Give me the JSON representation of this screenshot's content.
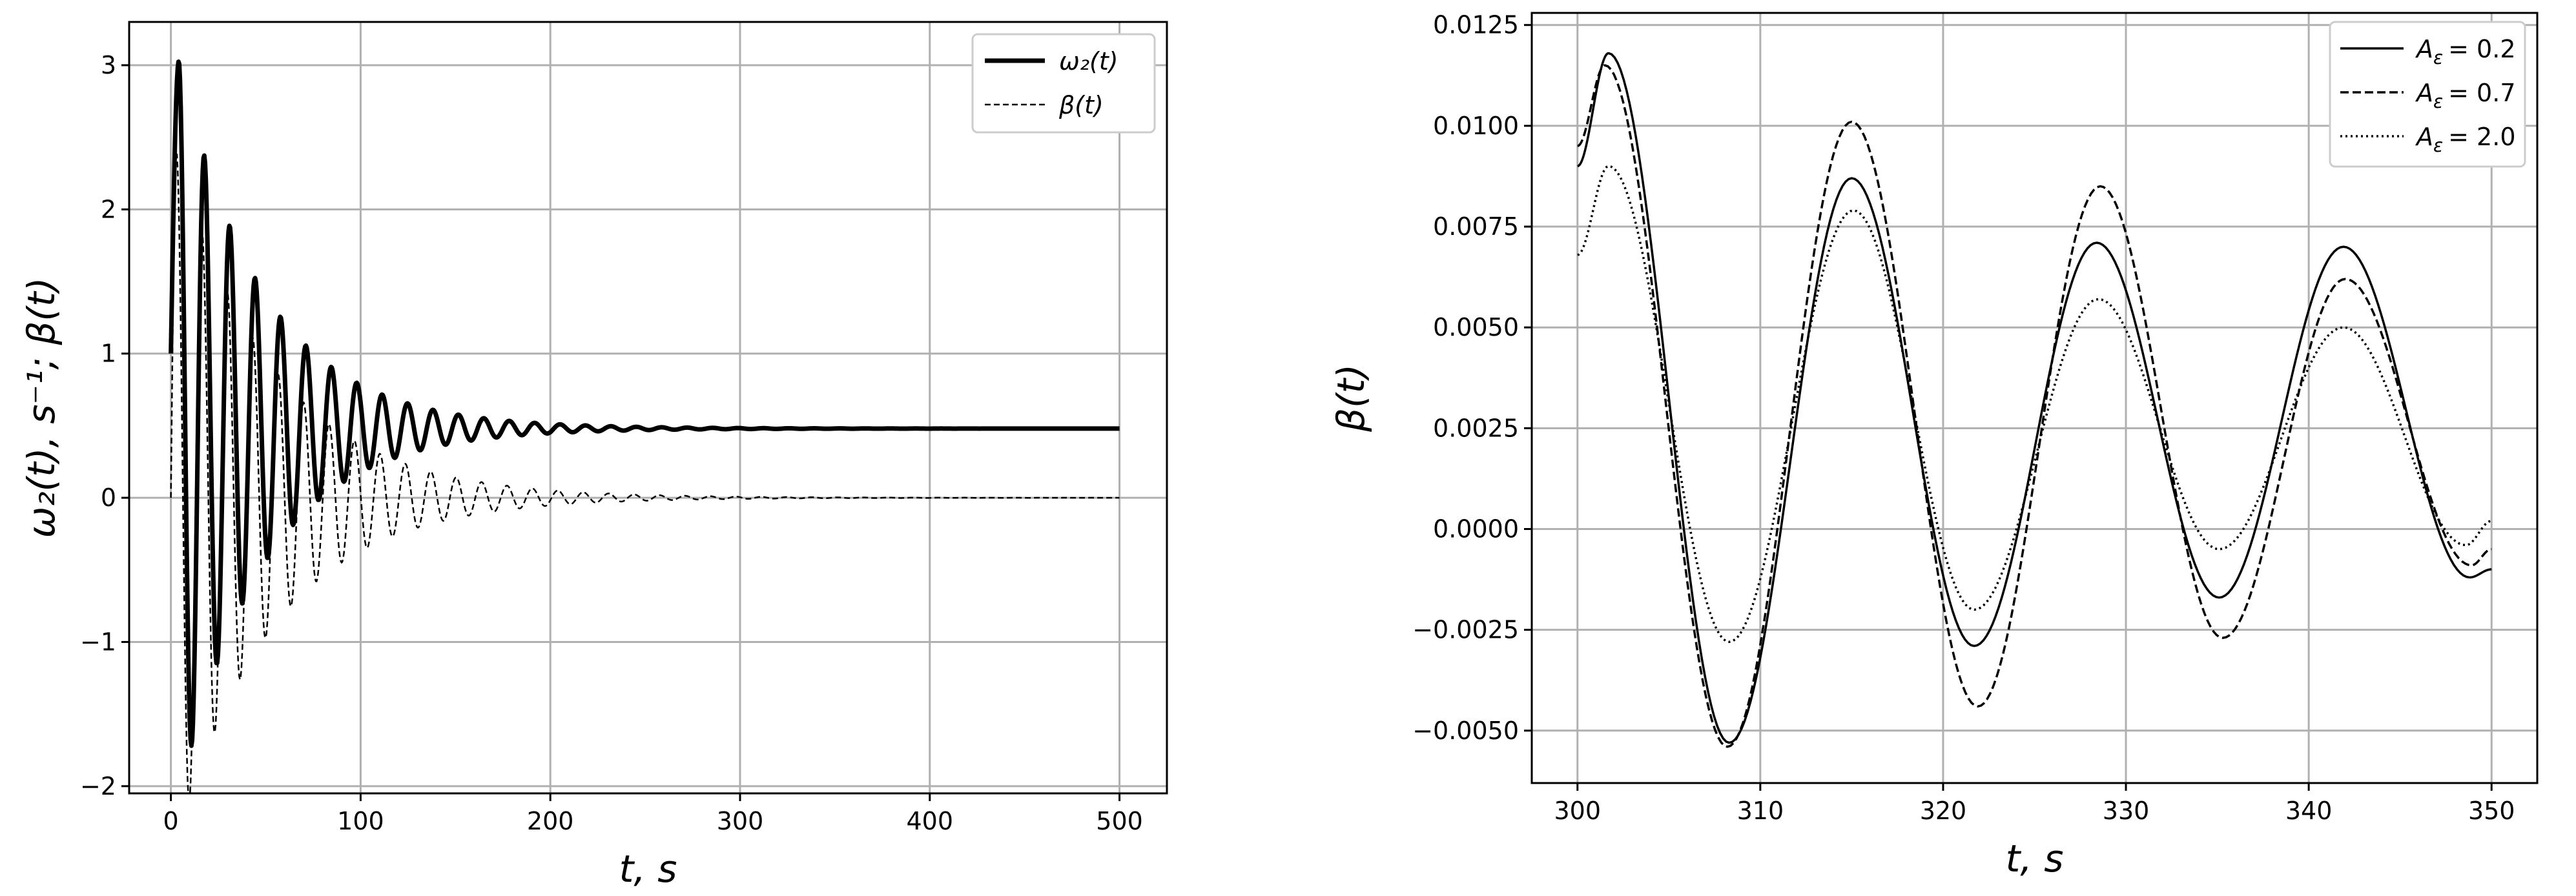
{
  "chart_data": [
    {
      "type": "line",
      "xlabel": "t, s",
      "ylabel": "ω₂(t), s⁻¹; β(t)",
      "xlim": [
        -22,
        525
      ],
      "ylim": [
        -2.05,
        3.3
      ],
      "xticks": [
        "0",
        "100",
        "200",
        "300",
        "400",
        "500"
      ],
      "yticks": [
        "−2",
        "−1",
        "0",
        "1",
        "2",
        "3"
      ],
      "grid": true,
      "legend_position": "top-right",
      "model": {
        "omega2": {
          "offset": 0.48,
          "start": 1.0,
          "amplitude0": 2.55,
          "decay_time": 45,
          "period": 13.4,
          "peak_time": 4.2
        },
        "beta": {
          "offset": 0.0,
          "start": 0.0,
          "amplitude0": 2.4,
          "decay_time": 52,
          "period": 13.4,
          "peak_time": 3.0
        }
      },
      "series": [
        {
          "name": "ω₂(t)",
          "style": "solid-thick",
          "color": "#000000",
          "key_points": [
            {
              "x": 0,
              "y": 1.0
            },
            {
              "x": 4,
              "y": 3.02
            },
            {
              "x": 12,
              "y": -1.5
            },
            {
              "x": 18,
              "y": 2.52
            },
            {
              "x": 32,
              "y": 2.18
            },
            {
              "x": 45,
              "y": 1.84
            },
            {
              "x": 100,
              "y": 0.98
            },
            {
              "x": 200,
              "y": 0.52
            },
            {
              "x": 300,
              "y": 0.48
            },
            {
              "x": 500,
              "y": 0.48
            }
          ]
        },
        {
          "name": "β(t)",
          "style": "dashed-thin",
          "color": "#000000",
          "key_points": [
            {
              "x": 0,
              "y": 0.0
            },
            {
              "x": 3,
              "y": 2.35
            },
            {
              "x": 14,
              "y": -1.8
            },
            {
              "x": 100,
              "y": -0.45
            },
            {
              "x": 200,
              "y": -0.04
            },
            {
              "x": 300,
              "y": 0.0
            },
            {
              "x": 500,
              "y": 0.0
            }
          ]
        }
      ]
    },
    {
      "type": "line",
      "xlabel": "t, s",
      "ylabel": "β(t)",
      "xlim": [
        297.5,
        352.5
      ],
      "ylim": [
        -0.0063,
        0.0128
      ],
      "xticks": [
        "300",
        "310",
        "320",
        "330",
        "340",
        "350"
      ],
      "yticks": [
        "−0.0050",
        "−0.0025",
        "0.0000",
        "0.0025",
        "0.0050",
        "0.0075",
        "0.0100",
        "0.0125"
      ],
      "grid": true,
      "legend_position": "top-right",
      "series": [
        {
          "name": "A_ε = 0.2",
          "legend_var": "A",
          "legend_sub": "ε",
          "legend_value": "= 0.2",
          "style": "solid",
          "color": "#000000",
          "points": [
            [
              300,
              0.009
            ],
            [
              301.7,
              0.0118
            ],
            [
              308.3,
              -0.0053
            ],
            [
              315.0,
              0.0087
            ],
            [
              321.7,
              -0.0029
            ],
            [
              328.4,
              0.0071
            ],
            [
              335.1,
              -0.0017
            ],
            [
              341.9,
              0.007
            ],
            [
              348.8,
              -0.0012
            ],
            [
              350,
              -0.001
            ]
          ]
        },
        {
          "name": "A_ε = 0.7",
          "legend_var": "A",
          "legend_sub": "ε",
          "legend_value": "= 0.7",
          "style": "dashed",
          "color": "#000000",
          "points": [
            [
              300,
              0.0095
            ],
            [
              301.5,
              0.0115
            ],
            [
              308.2,
              -0.0054
            ],
            [
              315.0,
              0.0101
            ],
            [
              321.9,
              -0.0044
            ],
            [
              328.6,
              0.0085
            ],
            [
              335.3,
              -0.0027
            ],
            [
              342.0,
              0.0062
            ],
            [
              348.9,
              -0.0009
            ],
            [
              350,
              -0.0005
            ]
          ]
        },
        {
          "name": "A_ε = 2.0",
          "legend_var": "A",
          "legend_sub": "ε",
          "legend_value": "= 2.0",
          "style": "dotted",
          "color": "#000000",
          "points": [
            [
              300,
              0.0068
            ],
            [
              301.7,
              0.009
            ],
            [
              308.3,
              -0.0028
            ],
            [
              315.1,
              0.0079
            ],
            [
              321.7,
              -0.002
            ],
            [
              328.5,
              0.0057
            ],
            [
              335.1,
              -0.0005
            ],
            [
              341.9,
              0.005
            ],
            [
              348.6,
              -0.0004
            ],
            [
              350,
              0.0002
            ]
          ]
        }
      ]
    }
  ]
}
